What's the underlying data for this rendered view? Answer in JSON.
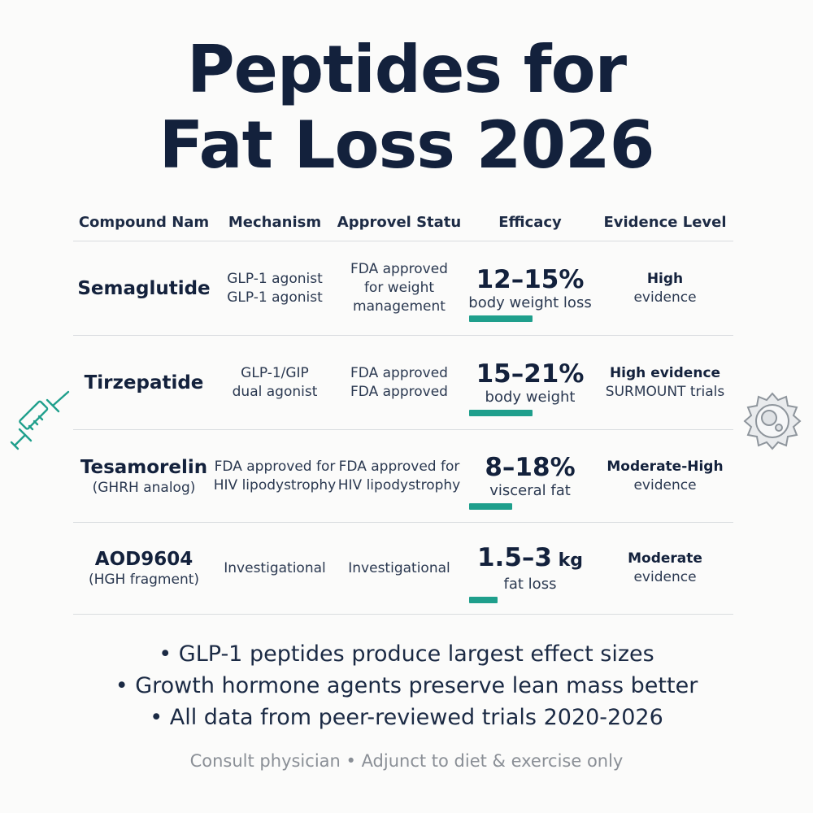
{
  "title": {
    "line1": "Peptides for",
    "line2": "Fat Loss 2026"
  },
  "table": {
    "headers": [
      "Compound Nam",
      "Mechanism",
      "Approvel Statu",
      "Efficacy",
      "Evidence Level"
    ],
    "rows": [
      {
        "name": "Semaglutide",
        "sub": "",
        "mechanism": [
          "GLP-1 agonist",
          "GLP-1 agonist"
        ],
        "approval": [
          "FDA approved",
          "for weight",
          "management"
        ],
        "efficacy_value": "12–15%",
        "efficacy_unit": "",
        "efficacy_label": "body weight loss",
        "efficacy_bar": 0.52,
        "evidence_strong": "High",
        "evidence_plain": "evidence"
      },
      {
        "name": "Tirzepatide",
        "sub": "",
        "mechanism": [
          "GLP-1/GIP",
          "dual agonist"
        ],
        "approval": [
          "FDA approved",
          "FDA approved"
        ],
        "efficacy_value": "15–21%",
        "efficacy_unit": "",
        "efficacy_label": "body weight",
        "efficacy_bar": 0.52,
        "evidence_strong": "High evidence",
        "evidence_plain": "SURMOUNT trials"
      },
      {
        "name": "Tesamorelin",
        "sub": "(GHRH analog)",
        "mechanism": [
          "FDA approved for",
          "HIV lipodystrophy"
        ],
        "approval": [
          "FDA approved for",
          "HIV lipodystrophy"
        ],
        "efficacy_value": "8–18%",
        "efficacy_unit": "",
        "efficacy_label": "visceral fat",
        "efficacy_bar": 0.35,
        "evidence_strong": "Moderate-High",
        "evidence_plain": "evidence"
      },
      {
        "name": "AOD9604",
        "sub": "(HGH fragment)",
        "mechanism": [
          "Investigational"
        ],
        "approval": [
          "Investigational"
        ],
        "efficacy_value": "1.5–3",
        "efficacy_unit": " kg",
        "efficacy_label": "fat loss",
        "efficacy_bar": 0.23,
        "evidence_strong": "Moderate",
        "evidence_plain": "evidence"
      }
    ]
  },
  "bullets": [
    "• GLP-1 peptides produce largest effect sizes",
    "• Growth hormone agents preserve lean mass better",
    "• All data from peer-reviewed trials 2020-2026"
  ],
  "footer": "Consult physician • Adjunct to diet & exercise only",
  "colors": {
    "accent": "#1f9f8c",
    "title": "#13213c",
    "footer": "#8a8f96"
  },
  "icons": {
    "left": "syringe-icon",
    "right": "cell-icon"
  }
}
